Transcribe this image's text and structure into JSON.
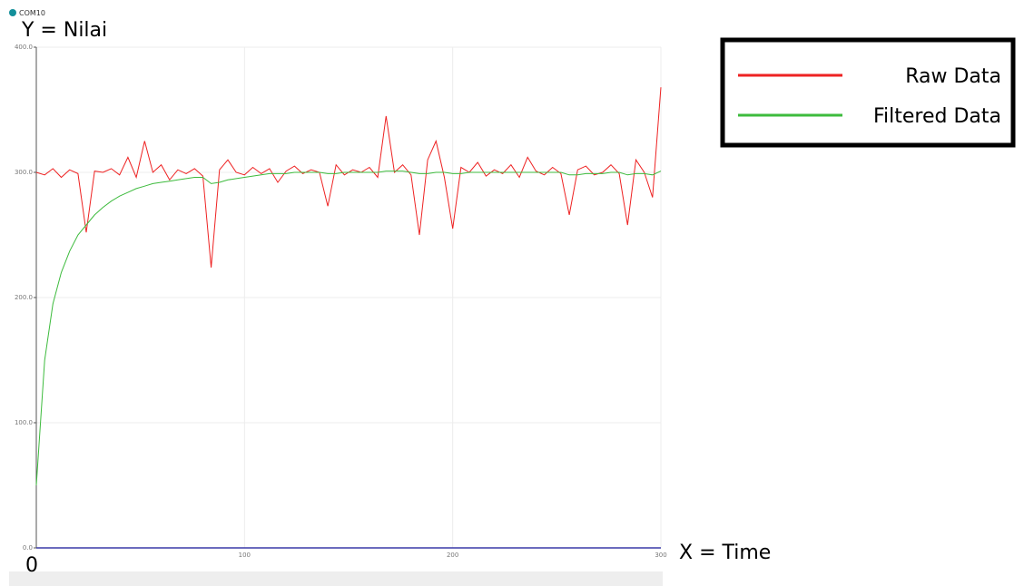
{
  "chart_data": {
    "type": "line",
    "title": "COM10",
    "y_label": "Y = Nilai",
    "x_label": "X = Time",
    "origin_label": "0",
    "x": [
      0,
      4,
      8,
      12,
      16,
      20,
      24,
      28,
      32,
      36,
      40,
      44,
      48,
      52,
      56,
      60,
      64,
      68,
      72,
      76,
      80,
      84,
      88,
      92,
      96,
      100,
      104,
      108,
      112,
      116,
      120,
      124,
      128,
      132,
      136,
      140,
      144,
      148,
      152,
      156,
      160,
      164,
      168,
      172,
      176,
      180,
      184,
      188,
      192,
      196,
      200,
      204,
      208,
      212,
      216,
      220,
      224,
      228,
      232,
      236,
      240,
      244,
      248,
      252,
      256,
      260,
      264,
      268,
      272,
      276,
      280,
      284,
      288,
      292,
      296,
      300
    ],
    "series": [
      {
        "name": "Raw Data",
        "color": "#ee2222",
        "values": [
          300,
          298,
          303,
          296,
          302,
          299,
          252,
          301,
          300,
          303,
          298,
          312,
          296,
          325,
          300,
          306,
          294,
          302,
          299,
          303,
          297,
          224,
          302,
          310,
          300,
          298,
          304,
          299,
          303,
          292,
          301,
          305,
          299,
          302,
          300,
          273,
          306,
          298,
          302,
          300,
          304,
          296,
          345,
          300,
          306,
          298,
          250,
          310,
          325,
          296,
          255,
          304,
          300,
          308,
          297,
          302,
          299,
          306,
          296,
          312,
          301,
          298,
          304,
          299,
          266,
          302,
          305,
          298,
          300,
          306,
          299,
          258,
          310,
          300,
          280,
          368
        ]
      },
      {
        "name": "Filtered Data",
        "color": "#3dbb3d",
        "values": [
          50,
          150,
          195,
          220,
          237,
          250,
          258,
          266,
          272,
          277,
          281,
          284,
          287,
          289,
          291,
          292,
          293,
          294,
          295,
          296,
          296,
          291,
          292,
          294,
          295,
          296,
          297,
          298,
          299,
          299,
          299,
          300,
          300,
          300,
          300,
          299,
          299,
          300,
          300,
          300,
          300,
          300,
          301,
          301,
          301,
          300,
          299,
          299,
          300,
          300,
          299,
          299,
          300,
          300,
          300,
          300,
          300,
          300,
          300,
          300,
          300,
          300,
          300,
          300,
          298,
          298,
          299,
          299,
          299,
          300,
          300,
          298,
          299,
          299,
          298,
          301
        ]
      }
    ],
    "xlim": [
      0,
      300
    ],
    "ylim": [
      0,
      400
    ],
    "xticks": [
      100,
      200,
      300
    ],
    "yticks": [
      {
        "value": 0,
        "label": "0.0"
      },
      {
        "value": 100,
        "label": "100.0"
      },
      {
        "value": 200,
        "label": "200.0"
      },
      {
        "value": 300,
        "label": "300.0"
      },
      {
        "value": 400,
        "label": "400.0"
      }
    ],
    "grid": true,
    "legend": "top-right"
  }
}
